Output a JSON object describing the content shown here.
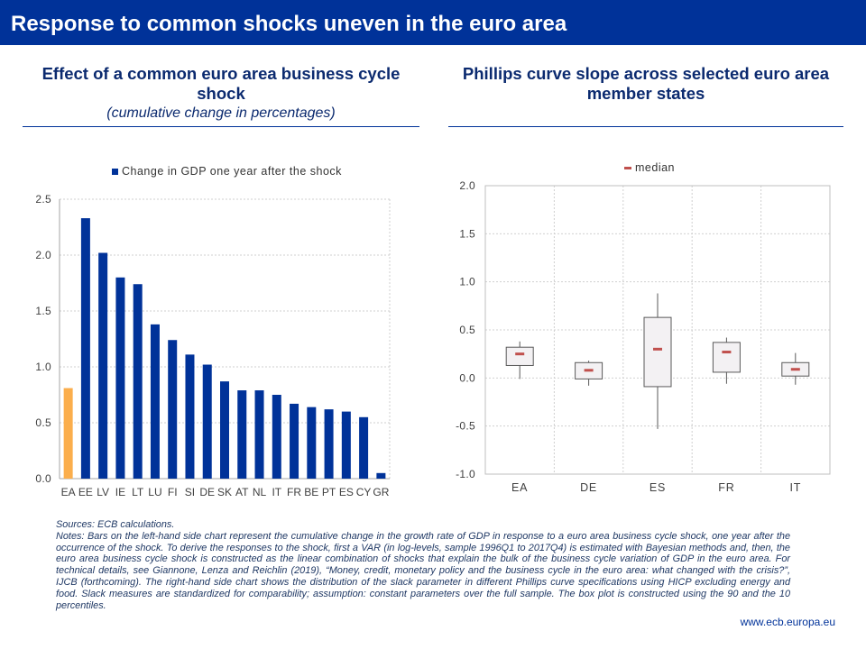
{
  "header": {
    "title": "Response to common shocks uneven in the euro area"
  },
  "chart_data": [
    {
      "type": "bar",
      "title": "Effect of a common euro area business cycle shock",
      "subtitle": "(cumulative change in percentages)",
      "legend": "Change in GDP one year after the shock",
      "categories": [
        "EA",
        "EE",
        "LV",
        "IE",
        "LT",
        "LU",
        "FI",
        "SI",
        "DE",
        "SK",
        "AT",
        "NL",
        "IT",
        "FR",
        "BE",
        "PT",
        "ES",
        "CY",
        "GR"
      ],
      "values": [
        0.81,
        2.33,
        2.02,
        1.8,
        1.74,
        1.38,
        1.24,
        1.11,
        1.02,
        0.87,
        0.79,
        0.79,
        0.75,
        0.67,
        0.64,
        0.62,
        0.6,
        0.55,
        0.05
      ],
      "highlight_index": 0,
      "ylim": [
        0,
        2.5
      ],
      "yticks": [
        "0.0",
        "0.5",
        "1.0",
        "1.5",
        "2.0",
        "2.5"
      ],
      "grid": true,
      "colors": {
        "bar": "#003299",
        "highlight": "#fbae4c"
      }
    },
    {
      "type": "box",
      "title": "Phillips curve slope across selected euro area member states",
      "legend": "median",
      "categories": [
        "EA",
        "DE",
        "ES",
        "FR",
        "IT"
      ],
      "boxes": [
        {
          "min": -0.01,
          "p10": 0.13,
          "median": 0.25,
          "p90": 0.32,
          "max": 0.38
        },
        {
          "min": -0.08,
          "p10": -0.01,
          "median": 0.08,
          "p90": 0.16,
          "max": 0.18
        },
        {
          "min": -0.53,
          "p10": -0.09,
          "median": 0.3,
          "p90": 0.63,
          "max": 0.88
        },
        {
          "min": -0.06,
          "p10": 0.06,
          "median": 0.27,
          "p90": 0.37,
          "max": 0.42
        },
        {
          "min": -0.07,
          "p10": 0.02,
          "median": 0.09,
          "p90": 0.16,
          "max": 0.26
        }
      ],
      "ylim": [
        -1.0,
        2.0
      ],
      "yticks": [
        "-1.0",
        "-0.5",
        "0.0",
        "0.5",
        "1.0",
        "1.5",
        "2.0"
      ],
      "grid": true,
      "colors": {
        "box_fill": "#f3f1f3",
        "box_stroke": "#595959",
        "median": "#c0504d"
      }
    }
  ],
  "footnotes": {
    "sources": "Sources: ECB calculations.",
    "notes": "Notes: Bars on the left-hand side chart represent the cumulative change in the growth rate of GDP in response to a euro area business cycle shock, one year after the occurrence of the shock. To derive the responses to the shock, first a VAR (in log-levels, sample 1996Q1 to 2017Q4) is estimated with Bayesian methods and, then, the euro area business cycle shock is constructed as the linear combination of shocks that explain the bulk of the business cycle variation of GDP in the euro area. For technical details, see Giannone, Lenza and Reichlin (2019), “Money, credit, monetary policy and the business cycle in the euro area: what changed with the crisis?”, IJCB (forthcoming). The right-hand side chart shows the distribution of the slack parameter in different Phillips curve specifications using HICP excluding energy and food. Slack measures are standardized for comparability; assumption: constant parameters over the full sample. The box plot is constructed using the 90 and the 10 percentiles."
  },
  "footer": {
    "url": "www.ecb.europa.eu"
  }
}
